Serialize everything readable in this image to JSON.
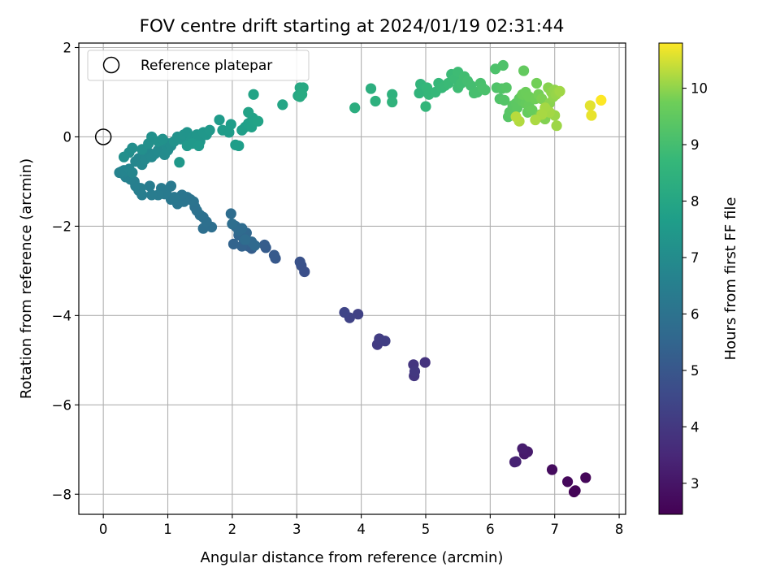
{
  "chart_data": {
    "type": "scatter",
    "title": "FOV centre drift starting at 2024/01/19 02:31:44",
    "xlabel": "Angular distance from reference (arcmin)",
    "ylabel": "Rotation from reference (arcmin)",
    "xlim": [
      -0.38,
      8.1
    ],
    "ylim": [
      -8.45,
      2.1
    ],
    "xticks": [
      0,
      1,
      2,
      3,
      4,
      5,
      6,
      7,
      8
    ],
    "yticks": [
      -8,
      -6,
      -4,
      -2,
      0,
      2
    ],
    "grid": true,
    "legend": {
      "location": "upper-left",
      "entries": [
        "Reference platepar"
      ]
    },
    "reference": {
      "x": 0,
      "y": 0
    },
    "colorbar": {
      "label": "Hours from first FF file",
      "colormap": "viridis",
      "range": [
        2.45,
        10.8
      ],
      "ticks": [
        3,
        4,
        5,
        6,
        7,
        8,
        9,
        10
      ]
    },
    "series": [
      {
        "points": [
          [
            7.3,
            -7.95,
            2.5
          ],
          [
            7.32,
            -7.92,
            2.55
          ],
          [
            7.48,
            -7.63,
            2.6
          ],
          [
            7.2,
            -7.72,
            2.65
          ],
          [
            6.96,
            -7.45,
            2.75
          ],
          [
            6.53,
            -7.1,
            3.1
          ],
          [
            6.58,
            -7.05,
            3.15
          ],
          [
            6.5,
            -6.98,
            3.2
          ],
          [
            6.38,
            -7.28,
            3.3
          ],
          [
            6.4,
            -7.27,
            3.35
          ],
          [
            4.99,
            -5.05,
            3.85
          ],
          [
            4.81,
            -5.1,
            3.9
          ],
          [
            4.82,
            -5.35,
            3.95
          ],
          [
            4.83,
            -5.25,
            4.0
          ],
          [
            4.25,
            -4.65,
            4.1
          ],
          [
            4.28,
            -4.52,
            4.15
          ],
          [
            4.37,
            -4.57,
            4.2
          ],
          [
            3.95,
            -3.97,
            4.3
          ],
          [
            3.82,
            -4.05,
            4.35
          ],
          [
            3.74,
            -3.93,
            4.4
          ],
          [
            3.12,
            -3.02,
            4.75
          ],
          [
            3.07,
            -2.88,
            4.8
          ],
          [
            3.05,
            -2.8,
            4.85
          ],
          [
            2.67,
            -2.72,
            5.05
          ],
          [
            2.65,
            -2.65,
            5.1
          ],
          [
            2.52,
            -2.48,
            5.15
          ],
          [
            2.5,
            -2.42,
            5.2
          ],
          [
            2.3,
            -2.5,
            5.25
          ],
          [
            2.25,
            -2.45,
            5.3
          ],
          [
            2.2,
            -2.4,
            5.35
          ],
          [
            2.15,
            -2.45,
            5.4
          ],
          [
            2.02,
            -2.4,
            5.45
          ],
          [
            2.1,
            -2.2,
            5.5
          ],
          [
            2.18,
            -2.3,
            5.55
          ],
          [
            2.22,
            -2.15,
            5.6
          ],
          [
            2.3,
            -2.35,
            5.62
          ],
          [
            2.35,
            -2.43,
            5.65
          ],
          [
            2.05,
            -2.0,
            5.7
          ],
          [
            2.1,
            -2.1,
            5.72
          ],
          [
            2.15,
            -2.05,
            5.75
          ],
          [
            2.2,
            -2.3,
            5.78
          ],
          [
            1.98,
            -1.72,
            5.8
          ],
          [
            2.0,
            -1.95,
            5.82
          ],
          [
            1.68,
            -2.02,
            5.85
          ],
          [
            1.55,
            -2.05,
            5.88
          ],
          [
            1.6,
            -1.9,
            5.9
          ],
          [
            1.55,
            -1.8,
            5.92
          ],
          [
            1.5,
            -1.75,
            5.95
          ],
          [
            1.45,
            -1.65,
            5.97
          ],
          [
            1.42,
            -1.57,
            6.0
          ],
          [
            1.4,
            -1.45,
            6.02
          ],
          [
            1.35,
            -1.4,
            6.05
          ],
          [
            1.3,
            -1.35,
            6.07
          ],
          [
            1.25,
            -1.45,
            6.1
          ],
          [
            1.22,
            -1.3,
            6.12
          ],
          [
            1.15,
            -1.5,
            6.15
          ],
          [
            1.12,
            -1.42,
            6.17
          ],
          [
            1.05,
            -1.4,
            6.2
          ],
          [
            1.1,
            -1.35,
            6.22
          ],
          [
            1.05,
            -1.1,
            6.25
          ],
          [
            0.98,
            -1.2,
            6.27
          ],
          [
            0.95,
            -1.28,
            6.3
          ],
          [
            0.9,
            -1.15,
            6.32
          ],
          [
            0.85,
            -1.3,
            6.35
          ],
          [
            0.75,
            -1.3,
            6.37
          ],
          [
            0.72,
            -1.1,
            6.4
          ],
          [
            0.6,
            -1.3,
            6.42
          ],
          [
            0.58,
            -1.15,
            6.45
          ],
          [
            0.55,
            -1.2,
            6.47
          ],
          [
            0.5,
            -1.1,
            6.5
          ],
          [
            0.48,
            -1.0,
            6.52
          ],
          [
            0.42,
            -0.95,
            6.55
          ],
          [
            0.4,
            -0.88,
            6.57
          ],
          [
            0.35,
            -0.9,
            6.6
          ],
          [
            0.3,
            -0.82,
            6.62
          ],
          [
            0.28,
            -0.78,
            6.65
          ],
          [
            0.25,
            -0.8,
            6.67
          ],
          [
            0.32,
            -0.75,
            6.7
          ],
          [
            0.4,
            -0.72,
            6.72
          ],
          [
            0.45,
            -0.8,
            6.74
          ],
          [
            0.5,
            -0.55,
            6.76
          ],
          [
            0.55,
            -0.48,
            6.78
          ],
          [
            0.6,
            -0.62,
            6.8
          ],
          [
            0.62,
            -0.4,
            6.82
          ],
          [
            0.65,
            -0.5,
            6.84
          ],
          [
            0.7,
            -0.35,
            6.86
          ],
          [
            0.75,
            -0.45,
            6.88
          ],
          [
            0.8,
            -0.38,
            6.9
          ],
          [
            0.85,
            -0.3,
            6.92
          ],
          [
            0.9,
            -0.25,
            6.94
          ],
          [
            0.95,
            -0.4,
            6.96
          ],
          [
            0.98,
            -0.2,
            6.98
          ],
          [
            1.0,
            -0.3,
            7.0
          ],
          [
            1.02,
            -0.15,
            7.02
          ],
          [
            1.05,
            -0.2,
            7.04
          ],
          [
            0.45,
            -0.25,
            7.06
          ],
          [
            0.4,
            -0.35,
            7.08
          ],
          [
            0.32,
            -0.45,
            7.1
          ],
          [
            0.6,
            -0.28,
            7.12
          ],
          [
            0.7,
            -0.15,
            7.14
          ],
          [
            0.75,
            0.0,
            7.16
          ],
          [
            0.85,
            -0.1,
            7.18
          ],
          [
            0.92,
            -0.05,
            7.2
          ],
          [
            1.1,
            -0.1,
            7.22
          ],
          [
            1.15,
            0.0,
            7.24
          ],
          [
            1.2,
            -0.05,
            7.26
          ],
          [
            1.25,
            0.05,
            7.28
          ],
          [
            1.3,
            0.1,
            7.3
          ],
          [
            1.35,
            -0.1,
            7.32
          ],
          [
            1.4,
            0.0,
            7.34
          ],
          [
            1.45,
            0.05,
            7.36
          ],
          [
            1.5,
            -0.1,
            7.38
          ],
          [
            1.55,
            0.1,
            7.4
          ],
          [
            1.6,
            0.05,
            7.42
          ],
          [
            1.65,
            0.15,
            7.44
          ],
          [
            1.18,
            -0.57,
            7.46
          ],
          [
            1.3,
            -0.2,
            7.48
          ],
          [
            1.38,
            -0.15,
            7.5
          ],
          [
            1.48,
            -0.2,
            7.52
          ],
          [
            1.8,
            0.38,
            7.55
          ],
          [
            1.85,
            0.15,
            7.58
          ],
          [
            1.95,
            0.1,
            7.6
          ],
          [
            1.98,
            0.28,
            7.62
          ],
          [
            2.05,
            -0.18,
            7.65
          ],
          [
            2.1,
            -0.2,
            7.68
          ],
          [
            2.15,
            0.15,
            7.7
          ],
          [
            2.2,
            0.22,
            7.72
          ],
          [
            2.25,
            0.3,
            7.74
          ],
          [
            2.28,
            0.32,
            7.76
          ],
          [
            2.3,
            0.22,
            7.78
          ],
          [
            2.32,
            0.42,
            7.8
          ],
          [
            2.35,
            0.35,
            7.82
          ],
          [
            2.25,
            0.55,
            7.84
          ],
          [
            2.4,
            0.35,
            7.86
          ],
          [
            2.33,
            0.95,
            7.88
          ],
          [
            2.78,
            0.72,
            7.95
          ],
          [
            3.02,
            0.92,
            8.0
          ],
          [
            3.05,
            1.1,
            8.05
          ],
          [
            3.1,
            1.1,
            8.1
          ],
          [
            3.05,
            0.9,
            8.12
          ],
          [
            3.08,
            0.95,
            8.15
          ],
          [
            3.9,
            0.65,
            8.3
          ],
          [
            4.15,
            1.08,
            8.35
          ],
          [
            4.22,
            0.8,
            8.4
          ],
          [
            4.48,
            0.95,
            8.45
          ],
          [
            4.48,
            0.78,
            8.5
          ],
          [
            4.9,
            0.98,
            8.55
          ],
          [
            4.92,
            1.18,
            8.6
          ],
          [
            5.0,
            0.68,
            8.62
          ],
          [
            5.02,
            1.1,
            8.65
          ],
          [
            5.05,
            0.95,
            8.68
          ],
          [
            5.15,
            1.0,
            8.7
          ],
          [
            5.2,
            1.2,
            8.72
          ],
          [
            5.25,
            1.1,
            8.75
          ],
          [
            5.3,
            1.15,
            8.78
          ],
          [
            5.35,
            1.2,
            8.8
          ],
          [
            5.4,
            1.4,
            8.82
          ],
          [
            5.45,
            1.3,
            8.85
          ],
          [
            5.5,
            1.45,
            8.88
          ],
          [
            5.5,
            1.1,
            8.9
          ],
          [
            5.55,
            1.2,
            8.92
          ],
          [
            5.6,
            1.35,
            8.95
          ],
          [
            5.65,
            1.25,
            8.98
          ],
          [
            5.7,
            1.15,
            9.0
          ],
          [
            5.75,
            0.98,
            9.02
          ],
          [
            5.8,
            1.0,
            9.05
          ],
          [
            5.85,
            1.2,
            9.08
          ],
          [
            5.88,
            1.1,
            9.1
          ],
          [
            5.92,
            1.05,
            9.12
          ],
          [
            6.08,
            1.52,
            9.15
          ],
          [
            6.2,
            1.6,
            9.18
          ],
          [
            6.1,
            1.1,
            9.2
          ],
          [
            6.15,
            0.85,
            9.22
          ],
          [
            6.18,
            1.08,
            9.25
          ],
          [
            6.22,
            0.82,
            9.28
          ],
          [
            6.25,
            1.1,
            9.3
          ],
          [
            6.28,
            0.45,
            9.32
          ],
          [
            6.3,
            0.55,
            9.35
          ],
          [
            6.35,
            0.7,
            9.38
          ],
          [
            6.38,
            0.6,
            9.4
          ],
          [
            6.4,
            0.75,
            9.42
          ],
          [
            6.42,
            0.65,
            9.45
          ],
          [
            6.45,
            0.85,
            9.48
          ],
          [
            6.48,
            0.9,
            9.5
          ],
          [
            6.5,
            0.8,
            9.52
          ],
          [
            6.52,
            1.48,
            9.55
          ],
          [
            6.55,
            0.75,
            9.58
          ],
          [
            6.58,
            0.55,
            9.6
          ],
          [
            6.6,
            0.7,
            9.62
          ],
          [
            6.65,
            0.6,
            9.65
          ],
          [
            6.5,
            0.95,
            9.68
          ],
          [
            6.55,
            1.0,
            9.7
          ],
          [
            6.6,
            0.9,
            9.72
          ],
          [
            6.7,
            0.85,
            9.75
          ],
          [
            6.72,
            1.2,
            9.78
          ],
          [
            6.75,
            0.95,
            9.8
          ],
          [
            6.78,
            0.5,
            9.82
          ],
          [
            6.8,
            0.85,
            9.85
          ],
          [
            6.82,
            0.45,
            9.88
          ],
          [
            6.85,
            0.4,
            9.9
          ],
          [
            6.88,
            0.6,
            9.92
          ],
          [
            6.9,
            1.1,
            9.94
          ],
          [
            6.92,
            0.75,
            9.96
          ],
          [
            6.95,
            1.0,
            9.98
          ],
          [
            6.98,
            0.9,
            10.0
          ],
          [
            7.0,
            1.05,
            10.02
          ],
          [
            7.02,
            0.95,
            10.04
          ],
          [
            7.05,
            1.0,
            10.06
          ],
          [
            7.0,
            0.48,
            10.08
          ],
          [
            7.03,
            0.25,
            10.1
          ],
          [
            7.08,
            1.02,
            10.12
          ],
          [
            6.92,
            0.55,
            10.14
          ],
          [
            6.85,
            0.65,
            10.16
          ],
          [
            6.8,
            0.5,
            10.18
          ],
          [
            6.7,
            0.38,
            10.2
          ],
          [
            6.45,
            0.35,
            10.25
          ],
          [
            6.4,
            0.45,
            10.3
          ],
          [
            7.55,
            0.7,
            10.6
          ],
          [
            7.57,
            0.48,
            10.65
          ],
          [
            7.72,
            0.82,
            10.8
          ]
        ]
      }
    ]
  }
}
